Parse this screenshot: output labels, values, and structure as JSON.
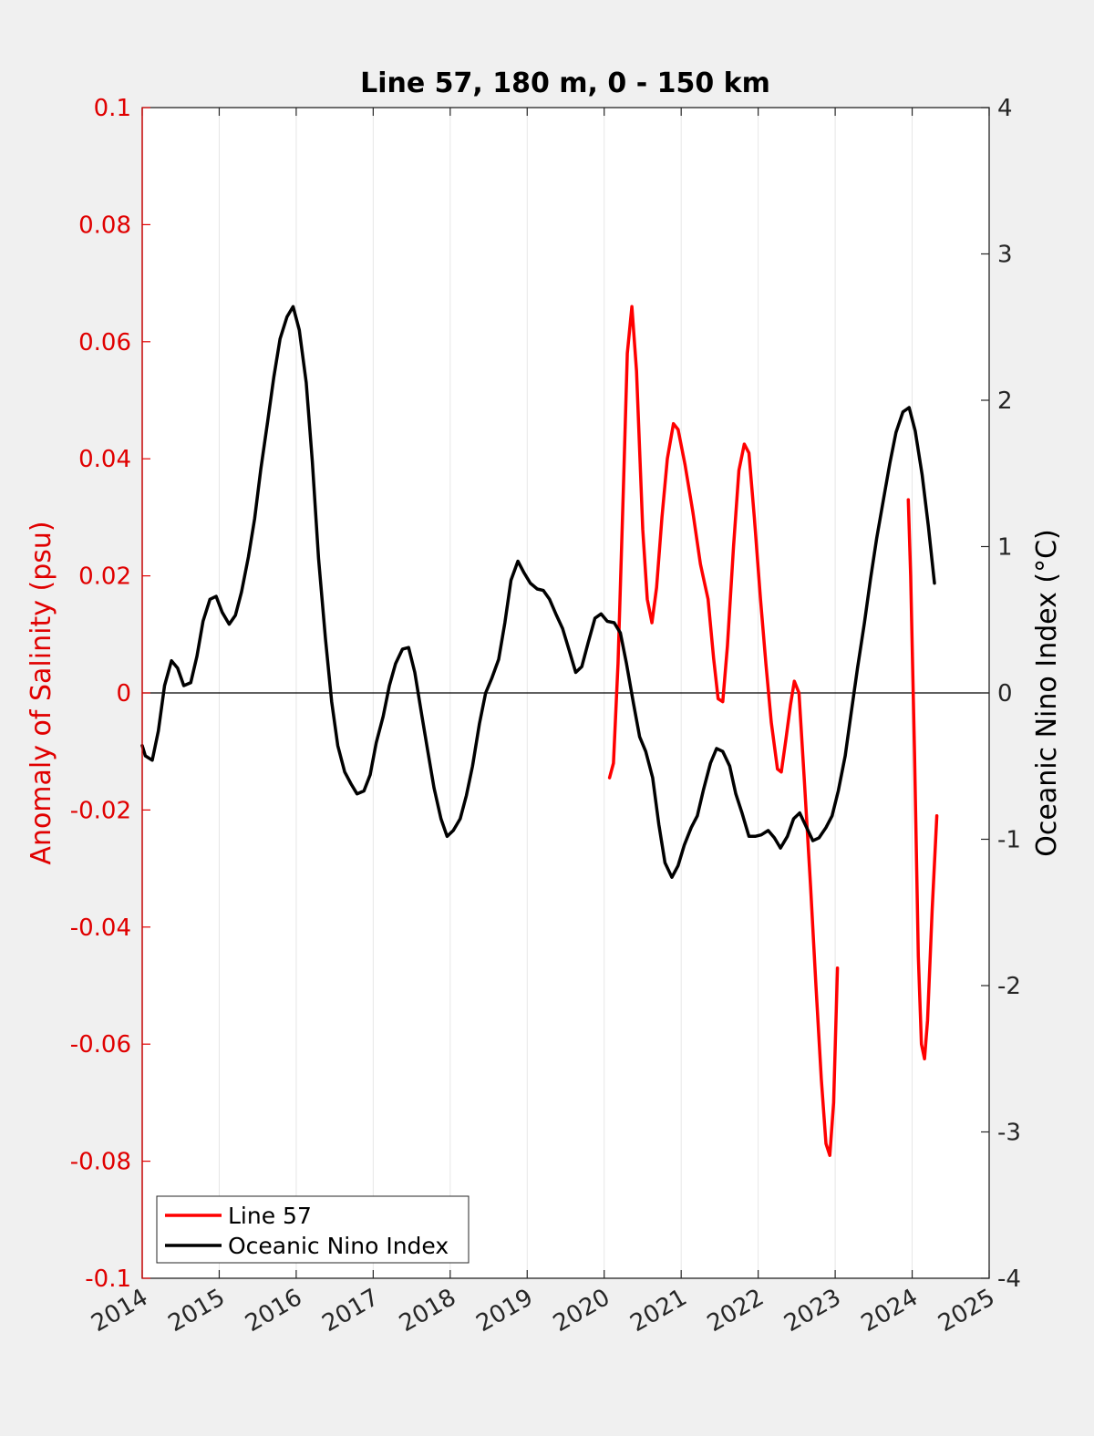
{
  "chart_data": {
    "type": "line",
    "title": "Line 57, 180 m, 0 - 150 km",
    "ylabel_left": "Anomaly of Salinity (psu)",
    "ylabel_right": "Oceanic Nino Index (°C)",
    "xlim": [
      2014,
      2025
    ],
    "ylim_left": [
      -0.1,
      0.1
    ],
    "ylim_right": [
      -4,
      4
    ],
    "x_ticks": [
      "2014",
      "2015",
      "2016",
      "2017",
      "2018",
      "2019",
      "2020",
      "2021",
      "2022",
      "2023",
      "2024",
      "2025"
    ],
    "y_left_ticks": [
      "0.1",
      "0.08",
      "0.06",
      "0.04",
      "0.02",
      "0",
      "-0.02",
      "-0.04",
      "-0.06",
      "-0.08",
      "-0.1"
    ],
    "y_right_ticks": [
      "4",
      "3",
      "2",
      "1",
      "0",
      "-1",
      "-2",
      "-3",
      "-4"
    ],
    "grid": "vertical",
    "legend_position": "bottom-left",
    "colors": {
      "line57": "#ff0000",
      "oni": "#000000",
      "left_axis": "#e00000",
      "background": "#f0f0f0"
    },
    "series": [
      {
        "name": "Line 57",
        "axis": "left",
        "segments": [
          [
            [
              2020.07,
              -0.0145
            ],
            [
              2020.12,
              -0.012
            ],
            [
              2020.18,
              0.005
            ],
            [
              2020.25,
              0.035
            ],
            [
              2020.3,
              0.058
            ],
            [
              2020.36,
              0.066
            ],
            [
              2020.42,
              0.055
            ],
            [
              2020.5,
              0.028
            ],
            [
              2020.56,
              0.016
            ],
            [
              2020.62,
              0.012
            ],
            [
              2020.68,
              0.018
            ],
            [
              2020.75,
              0.03
            ],
            [
              2020.82,
              0.04
            ],
            [
              2020.9,
              0.046
            ],
            [
              2020.96,
              0.045
            ],
            [
              2021.05,
              0.039
            ],
            [
              2021.15,
              0.031
            ],
            [
              2021.25,
              0.022
            ],
            [
              2021.35,
              0.016
            ],
            [
              2021.42,
              0.006
            ],
            [
              2021.48,
              -0.001
            ],
            [
              2021.54,
              -0.0015
            ],
            [
              2021.6,
              0.008
            ],
            [
              2021.68,
              0.025
            ],
            [
              2021.75,
              0.038
            ],
            [
              2021.82,
              0.0425
            ],
            [
              2021.88,
              0.041
            ],
            [
              2021.95,
              0.03
            ],
            [
              2022.03,
              0.016
            ],
            [
              2022.1,
              0.005
            ],
            [
              2022.17,
              -0.005
            ],
            [
              2022.25,
              -0.013
            ],
            [
              2022.3,
              -0.0135
            ],
            [
              2022.36,
              -0.008
            ],
            [
              2022.42,
              -0.002
            ],
            [
              2022.47,
              0.002
            ],
            [
              2022.53,
              0.0
            ],
            [
              2022.6,
              -0.015
            ],
            [
              2022.68,
              -0.033
            ],
            [
              2022.75,
              -0.05
            ],
            [
              2022.82,
              -0.066
            ],
            [
              2022.88,
              -0.077
            ],
            [
              2022.93,
              -0.079
            ],
            [
              2022.98,
              -0.07
            ],
            [
              2023.03,
              -0.047
            ]
          ],
          [
            [
              2023.95,
              0.033
            ],
            [
              2023.98,
              0.02
            ],
            [
              2024.03,
              -0.01
            ],
            [
              2024.08,
              -0.045
            ],
            [
              2024.12,
              -0.06
            ],
            [
              2024.16,
              -0.0625
            ],
            [
              2024.2,
              -0.056
            ],
            [
              2024.26,
              -0.037
            ],
            [
              2024.32,
              -0.021
            ]
          ]
        ]
      },
      {
        "name": "Oceanic Nino Index",
        "axis": "right",
        "segments": [
          [
            [
              2014.0,
              -0.36
            ],
            [
              2014.04,
              -0.43
            ],
            [
              2014.13,
              -0.46
            ],
            [
              2014.21,
              -0.26
            ],
            [
              2014.29,
              0.05
            ],
            [
              2014.38,
              0.22
            ],
            [
              2014.46,
              0.17
            ],
            [
              2014.54,
              0.05
            ],
            [
              2014.63,
              0.07
            ],
            [
              2014.71,
              0.25
            ],
            [
              2014.79,
              0.49
            ],
            [
              2014.88,
              0.64
            ],
            [
              2014.96,
              0.66
            ],
            [
              2015.04,
              0.55
            ],
            [
              2015.13,
              0.47
            ],
            [
              2015.21,
              0.53
            ],
            [
              2015.29,
              0.69
            ],
            [
              2015.38,
              0.93
            ],
            [
              2015.46,
              1.19
            ],
            [
              2015.54,
              1.53
            ],
            [
              2015.63,
              1.86
            ],
            [
              2015.71,
              2.16
            ],
            [
              2015.79,
              2.42
            ],
            [
              2015.88,
              2.57
            ],
            [
              2015.96,
              2.64
            ],
            [
              2016.04,
              2.48
            ],
            [
              2016.13,
              2.12
            ],
            [
              2016.21,
              1.58
            ],
            [
              2016.29,
              0.92
            ],
            [
              2016.38,
              0.37
            ],
            [
              2016.46,
              -0.06
            ],
            [
              2016.54,
              -0.36
            ],
            [
              2016.63,
              -0.54
            ],
            [
              2016.71,
              -0.62
            ],
            [
              2016.79,
              -0.69
            ],
            [
              2016.88,
              -0.67
            ],
            [
              2016.96,
              -0.56
            ],
            [
              2017.04,
              -0.34
            ],
            [
              2017.13,
              -0.16
            ],
            [
              2017.21,
              0.05
            ],
            [
              2017.29,
              0.2
            ],
            [
              2017.38,
              0.3
            ],
            [
              2017.46,
              0.31
            ],
            [
              2017.54,
              0.14
            ],
            [
              2017.63,
              -0.15
            ],
            [
              2017.71,
              -0.4
            ],
            [
              2017.79,
              -0.65
            ],
            [
              2017.88,
              -0.86
            ],
            [
              2017.96,
              -0.98
            ],
            [
              2018.04,
              -0.94
            ],
            [
              2018.13,
              -0.86
            ],
            [
              2018.21,
              -0.7
            ],
            [
              2018.29,
              -0.5
            ],
            [
              2018.38,
              -0.21
            ],
            [
              2018.46,
              0.0
            ],
            [
              2018.54,
              0.1
            ],
            [
              2018.63,
              0.23
            ],
            [
              2018.71,
              0.48
            ],
            [
              2018.79,
              0.77
            ],
            [
              2018.88,
              0.9
            ],
            [
              2018.96,
              0.82
            ],
            [
              2019.04,
              0.75
            ],
            [
              2019.13,
              0.71
            ],
            [
              2019.21,
              0.7
            ],
            [
              2019.29,
              0.64
            ],
            [
              2019.38,
              0.53
            ],
            [
              2019.46,
              0.44
            ],
            [
              2019.54,
              0.3
            ],
            [
              2019.63,
              0.14
            ],
            [
              2019.71,
              0.18
            ],
            [
              2019.79,
              0.34
            ],
            [
              2019.88,
              0.51
            ],
            [
              2019.96,
              0.54
            ],
            [
              2020.04,
              0.49
            ],
            [
              2020.13,
              0.48
            ],
            [
              2020.21,
              0.41
            ],
            [
              2020.29,
              0.2
            ],
            [
              2020.38,
              -0.07
            ],
            [
              2020.46,
              -0.3
            ],
            [
              2020.54,
              -0.4
            ],
            [
              2020.63,
              -0.58
            ],
            [
              2020.71,
              -0.9
            ],
            [
              2020.79,
              -1.16
            ],
            [
              2020.88,
              -1.26
            ],
            [
              2020.96,
              -1.18
            ],
            [
              2021.04,
              -1.04
            ],
            [
              2021.13,
              -0.92
            ],
            [
              2021.21,
              -0.84
            ],
            [
              2021.29,
              -0.66
            ],
            [
              2021.38,
              -0.48
            ],
            [
              2021.46,
              -0.38
            ],
            [
              2021.54,
              -0.4
            ],
            [
              2021.63,
              -0.5
            ],
            [
              2021.71,
              -0.69
            ],
            [
              2021.79,
              -0.82
            ],
            [
              2021.88,
              -0.98
            ],
            [
              2021.96,
              -0.98
            ],
            [
              2022.04,
              -0.97
            ],
            [
              2022.13,
              -0.94
            ],
            [
              2022.21,
              -0.99
            ],
            [
              2022.29,
              -1.06
            ],
            [
              2022.38,
              -0.98
            ],
            [
              2022.46,
              -0.86
            ],
            [
              2022.54,
              -0.82
            ],
            [
              2022.63,
              -0.92
            ],
            [
              2022.71,
              -1.01
            ],
            [
              2022.79,
              -0.99
            ],
            [
              2022.88,
              -0.92
            ],
            [
              2022.96,
              -0.84
            ],
            [
              2023.04,
              -0.67
            ],
            [
              2023.13,
              -0.43
            ],
            [
              2023.21,
              -0.13
            ],
            [
              2023.29,
              0.17
            ],
            [
              2023.38,
              0.48
            ],
            [
              2023.46,
              0.78
            ],
            [
              2023.54,
              1.06
            ],
            [
              2023.63,
              1.33
            ],
            [
              2023.71,
              1.57
            ],
            [
              2023.79,
              1.78
            ],
            [
              2023.88,
              1.92
            ],
            [
              2023.96,
              1.95
            ],
            [
              2024.04,
              1.79
            ],
            [
              2024.13,
              1.49
            ],
            [
              2024.21,
              1.14
            ],
            [
              2024.29,
              0.75
            ]
          ]
        ]
      }
    ]
  }
}
